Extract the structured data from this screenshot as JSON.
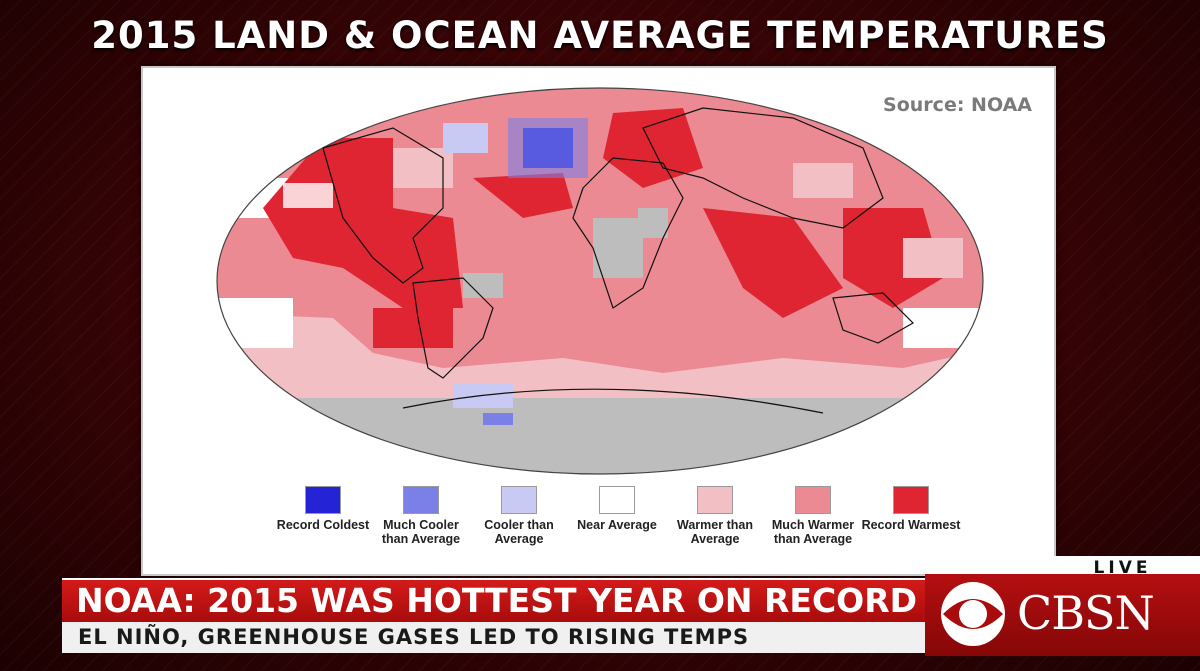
{
  "title": "2015 LAND & OCEAN AVERAGE TEMPERATURES",
  "map": {
    "source": "Source: NOAA",
    "legend": [
      {
        "label": "Record Coldest",
        "color": "#2424d6"
      },
      {
        "label": "Much Cooler than Average",
        "color": "#7b80e6"
      },
      {
        "label": "Cooler than Average",
        "color": "#c9caf3"
      },
      {
        "label": "Near Average",
        "color": "#ffffff"
      },
      {
        "label": "Warmer than Average",
        "color": "#f2c0c4"
      },
      {
        "label": "Much Warmer than Average",
        "color": "#ec8a93"
      },
      {
        "label": "Record Warmest",
        "color": "#de2531"
      }
    ],
    "no_data_color": "#bdbdbd"
  },
  "broadcast": {
    "live_label": "LIVE",
    "headline": "NOAA: 2015 WAS HOTTEST YEAR ON RECORD",
    "subline": "EL NIÑO, GREENHOUSE GASES LED TO RISING TEMPS",
    "logo_text": "CBSN"
  }
}
